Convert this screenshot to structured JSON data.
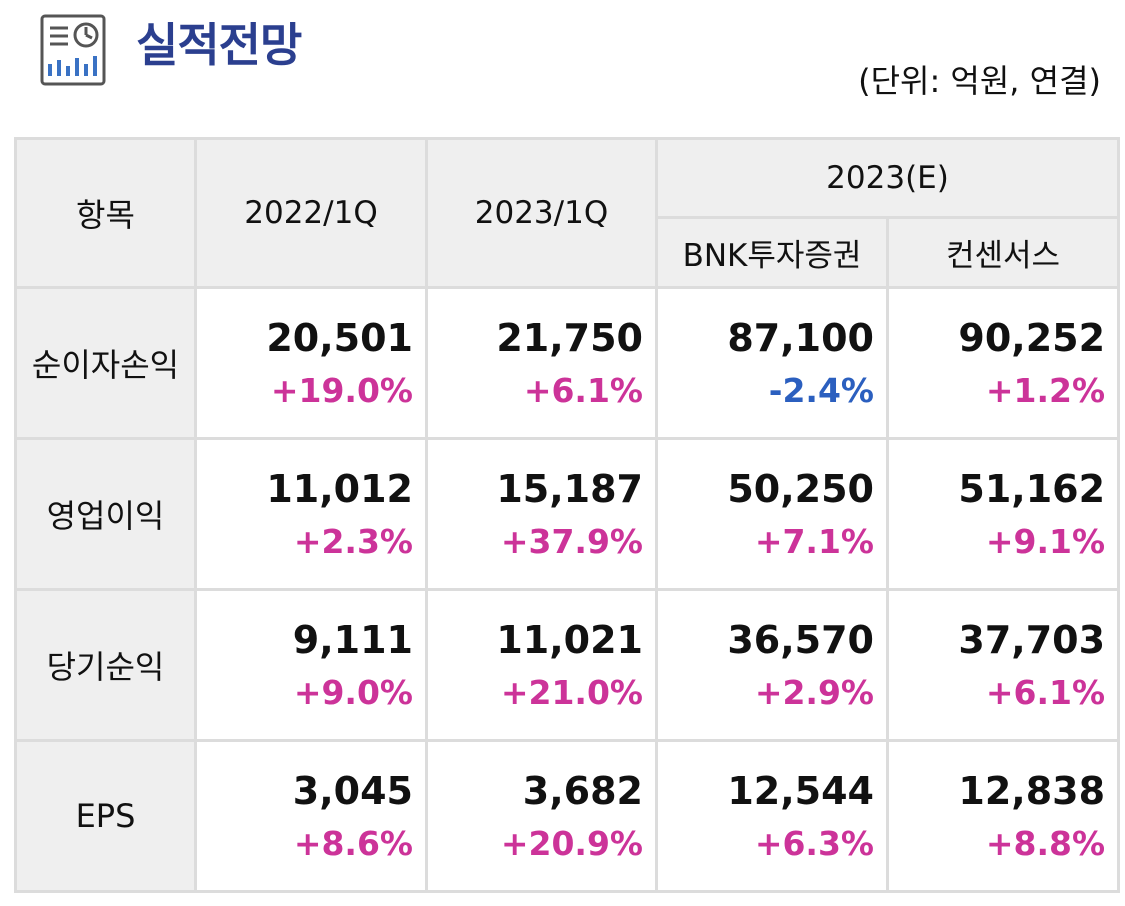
{
  "header": {
    "title": "실적전망",
    "unit_note": "(단위: 억원, 연결)",
    "icon": "report-chart-icon",
    "icon_color": "#2b3f8f"
  },
  "table": {
    "col_item": "항목",
    "col_2022q1": "2022/1Q",
    "col_2023q1": "2023/1Q",
    "col_2023e": "2023(E)",
    "col_bnk": "BNK투자증권",
    "col_consensus": "컨센서스",
    "rows": [
      {
        "label": "순이자손익",
        "cells": [
          {
            "value": "20,501",
            "change": "+19.0%",
            "sign": "pos"
          },
          {
            "value": "21,750",
            "change": "+6.1%",
            "sign": "pos"
          },
          {
            "value": "87,100",
            "change": "-2.4%",
            "sign": "neg"
          },
          {
            "value": "90,252",
            "change": "+1.2%",
            "sign": "pos"
          }
        ]
      },
      {
        "label": "영업이익",
        "cells": [
          {
            "value": "11,012",
            "change": "+2.3%",
            "sign": "pos"
          },
          {
            "value": "15,187",
            "change": "+37.9%",
            "sign": "pos"
          },
          {
            "value": "50,250",
            "change": "+7.1%",
            "sign": "pos"
          },
          {
            "value": "51,162",
            "change": "+9.1%",
            "sign": "pos"
          }
        ]
      },
      {
        "label": "당기순익",
        "cells": [
          {
            "value": "9,111",
            "change": "+9.0%",
            "sign": "pos"
          },
          {
            "value": "11,021",
            "change": "+21.0%",
            "sign": "pos"
          },
          {
            "value": "36,570",
            "change": "+2.9%",
            "sign": "pos"
          },
          {
            "value": "37,703",
            "change": "+6.1%",
            "sign": "pos"
          }
        ]
      },
      {
        "label": "EPS",
        "cells": [
          {
            "value": "3,045",
            "change": "+8.6%",
            "sign": "pos"
          },
          {
            "value": "3,682",
            "change": "+20.9%",
            "sign": "pos"
          },
          {
            "value": "12,544",
            "change": "+6.3%",
            "sign": "pos"
          },
          {
            "value": "12,838",
            "change": "+8.8%",
            "sign": "pos"
          }
        ]
      }
    ]
  },
  "colors": {
    "positive": "#cc3399",
    "negative": "#2b5fbf",
    "header_bg": "#efefef",
    "border": "#dcdcdc"
  }
}
